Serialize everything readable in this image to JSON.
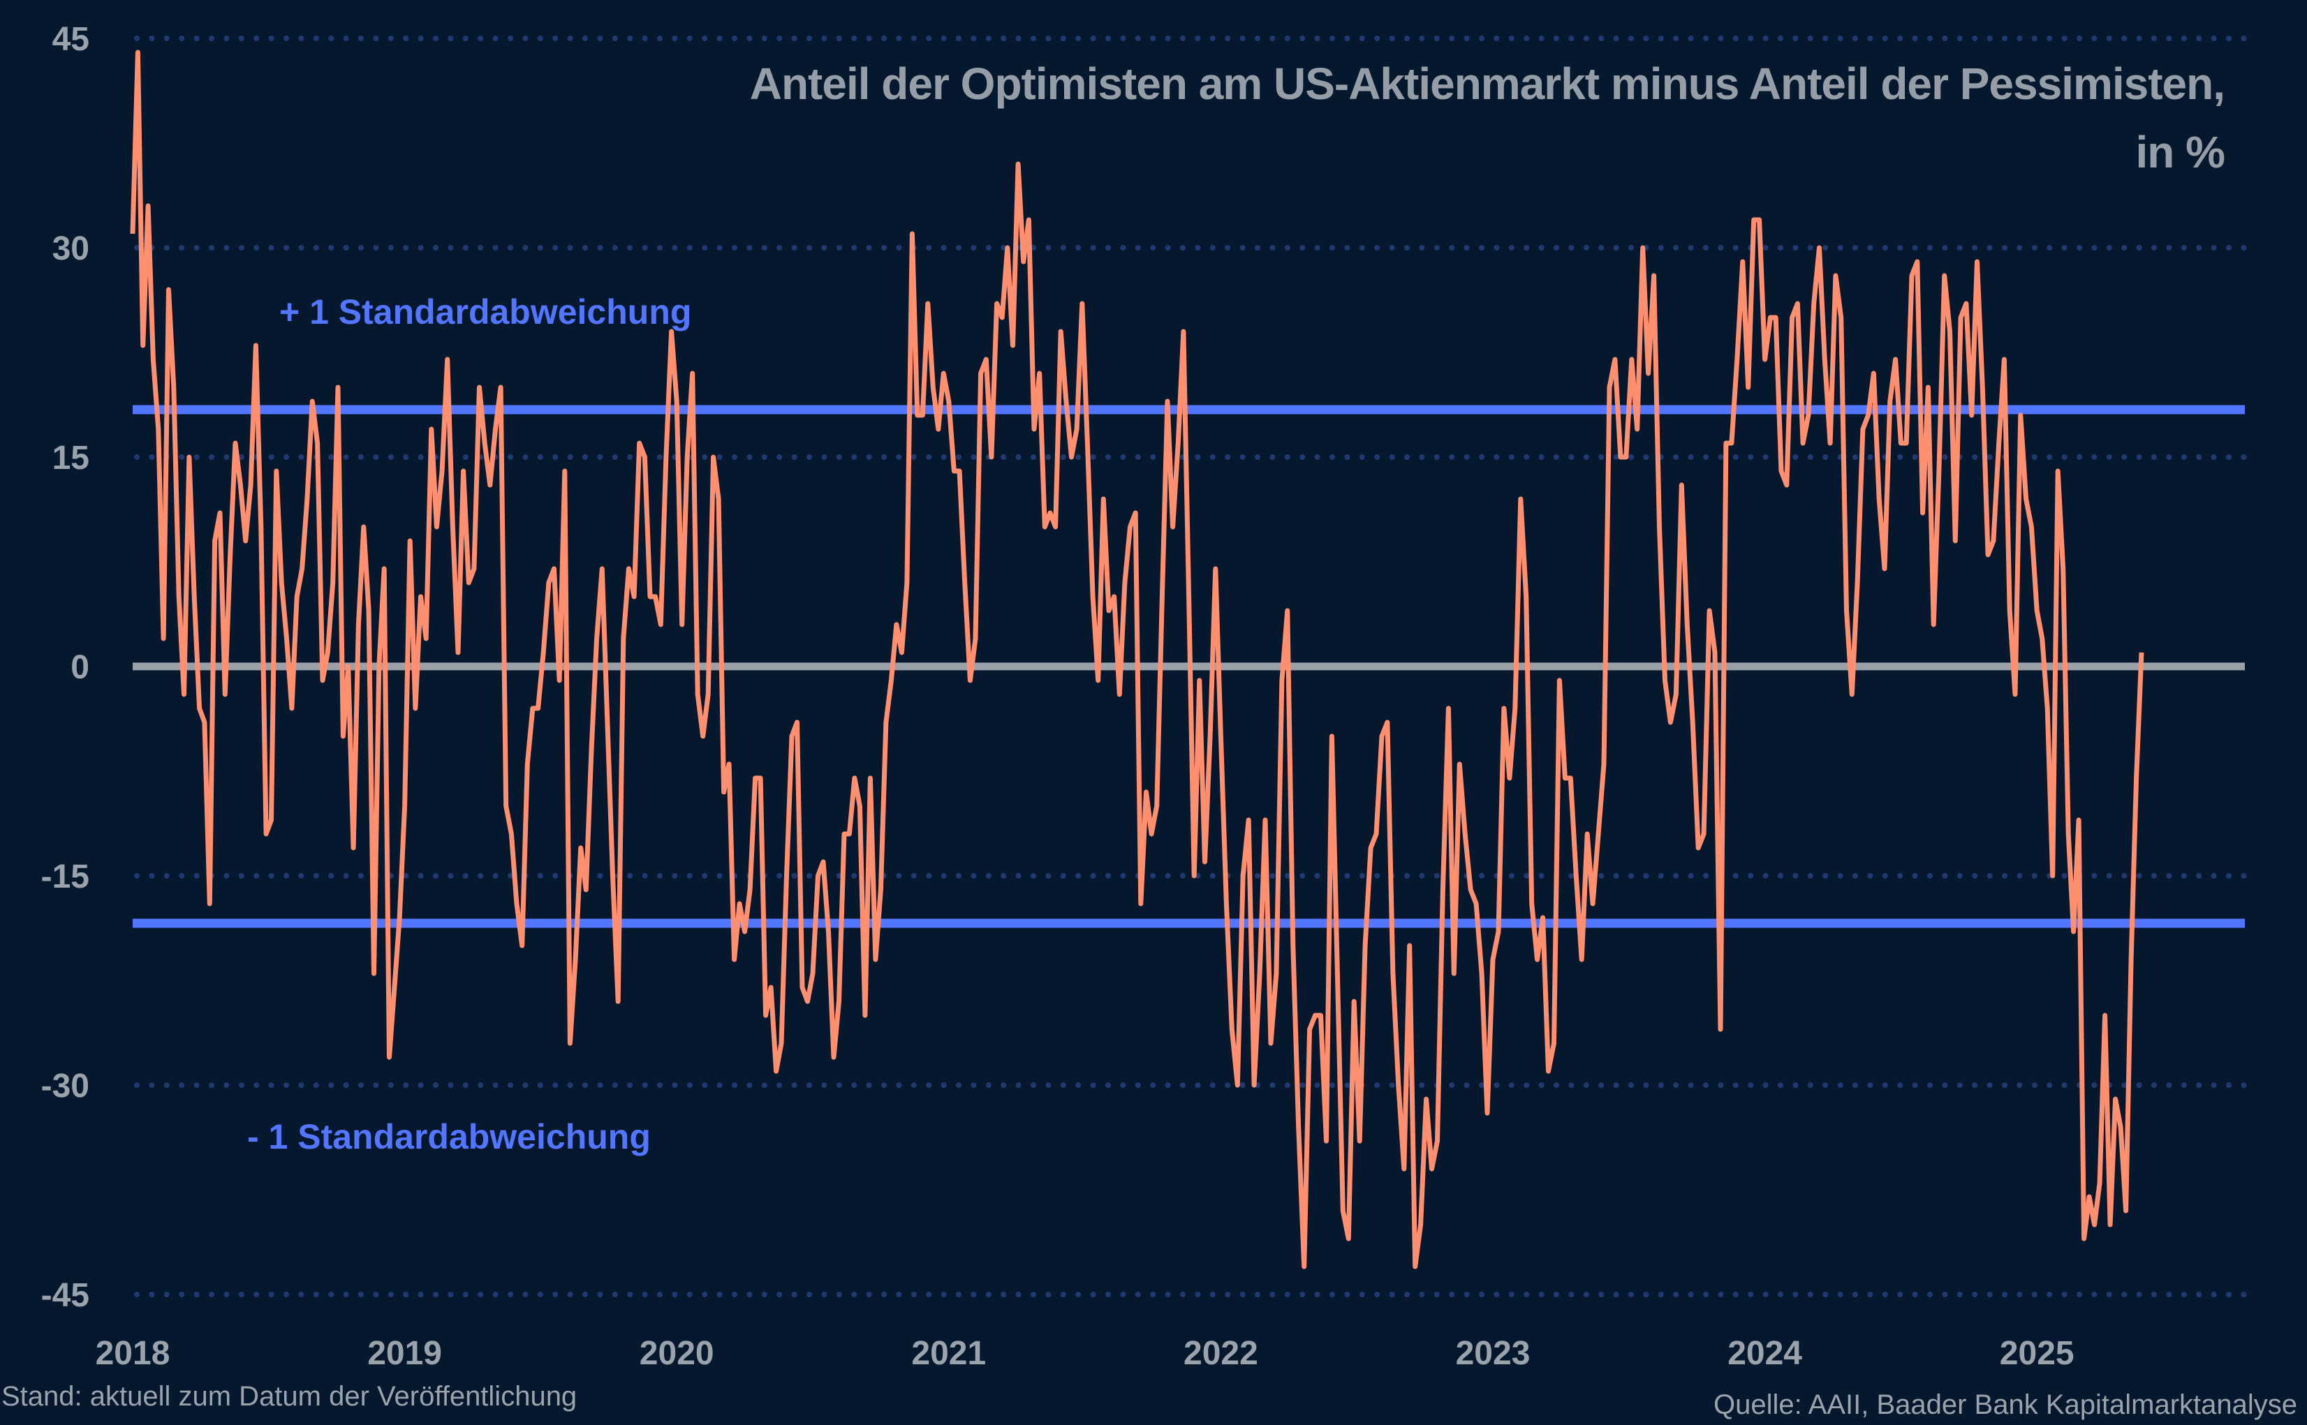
{
  "chart_data": {
    "type": "line",
    "title": "Anteil der Optimisten am US-Aktienmarkt minus Anteil der Pessimisten,",
    "title_line2": "in %",
    "frequency": "weekly",
    "ylim": [
      -45,
      45
    ],
    "yticks": [
      "45",
      "30",
      "15",
      "0",
      "-15",
      "-30",
      "-45"
    ],
    "ytick_values": [
      45,
      30,
      15,
      0,
      -15,
      -30,
      -45
    ],
    "xticks": [
      "2018",
      "2019",
      "2020",
      "2021",
      "2022",
      "2023",
      "2024",
      "2025"
    ],
    "grid": "horizontal dotted",
    "series_color": "#ff8f6e",
    "values_by_year": {
      "2018": [
        31,
        44,
        23,
        33,
        22,
        17,
        2,
        27,
        20,
        5,
        -2,
        15,
        5,
        -3,
        -4,
        -17,
        9,
        11,
        -2,
        8,
        16,
        13,
        9,
        13,
        23,
        10,
        -12,
        -11,
        14,
        6,
        2,
        -3,
        5,
        7,
        12,
        19,
        16,
        -1,
        1,
        6,
        20,
        -5,
        0,
        -13,
        3,
        10,
        4,
        -22,
        0,
        7,
        -28,
        -23,
        -18
      ],
      "2019": [
        -10,
        9,
        -3,
        5,
        2,
        17,
        10,
        14,
        22,
        10,
        1,
        14,
        6,
        7,
        20,
        16,
        13,
        17,
        20,
        -10,
        -12,
        -17,
        -20,
        -7,
        -3,
        -3,
        1,
        6,
        7,
        -1,
        14,
        -27,
        -21,
        -13,
        -16,
        -6,
        2,
        7,
        -4,
        -15,
        -24,
        2,
        7,
        5,
        16,
        15,
        5,
        5,
        3,
        15,
        24
      ],
      "2020": [
        19,
        3,
        15,
        21,
        -2,
        -5,
        -2,
        15,
        12,
        -9,
        -7,
        -21,
        -17,
        -19,
        -16,
        -8,
        -8,
        -25,
        -23,
        -29,
        -27,
        -15,
        -5,
        -4,
        -23,
        -24,
        -22,
        -15,
        -14,
        -19,
        -28,
        -24,
        -12,
        -12,
        -8,
        -10,
        -25,
        -8,
        -21,
        -16,
        -4,
        -1,
        3,
        1,
        6,
        31,
        18,
        18,
        26,
        20,
        17,
        21
      ],
      "2021": [
        19,
        14,
        14,
        6,
        -1,
        2,
        21,
        22,
        15,
        26,
        25,
        30,
        23,
        36,
        29,
        32,
        17,
        21,
        10,
        11,
        10,
        24,
        19,
        15,
        17,
        26,
        16,
        5,
        -1,
        12,
        4,
        5,
        -2,
        6,
        10,
        11,
        -17,
        -9,
        -12,
        -10,
        5,
        19,
        10,
        16,
        24,
        5,
        -15,
        -1,
        -14,
        -5,
        7
      ],
      "2022": [
        -5,
        -17,
        -26,
        -30,
        -15,
        -11,
        -30,
        -22,
        -11,
        -27,
        -22,
        -1,
        4,
        -20,
        -33,
        -43,
        -26,
        -25,
        -25,
        -34,
        -5,
        -22,
        -39,
        -41,
        -24,
        -34,
        -20,
        -13,
        -12,
        -5,
        -4,
        -22,
        -30,
        -36,
        -20,
        -43,
        -40,
        -31,
        -36,
        -34,
        -16,
        -3,
        -22,
        -7,
        -12,
        -16,
        -17,
        -22,
        -32
      ],
      "2023": [
        -21,
        -19,
        -3,
        -8,
        -3,
        12,
        5,
        -17,
        -21,
        -18,
        -29,
        -27,
        -1,
        -8,
        -8,
        -15,
        -21,
        -12,
        -17,
        -12,
        -7,
        20,
        22,
        15,
        15,
        22,
        17,
        30,
        21,
        28,
        10,
        -1,
        -4,
        -2,
        13,
        3,
        -4,
        -13,
        -12,
        4,
        1,
        -26,
        16,
        16,
        22,
        29,
        20,
        32,
        32
      ],
      "2024": [
        22,
        25,
        25,
        14,
        13,
        25,
        26,
        16,
        18,
        26,
        30,
        22,
        16,
        28,
        25,
        4,
        -2,
        6,
        17,
        18,
        21,
        12,
        7,
        19,
        22,
        16,
        16,
        28,
        29,
        11,
        20,
        3,
        14,
        28,
        24,
        9,
        25,
        26,
        18,
        29,
        20,
        8,
        9,
        16,
        22,
        4,
        -2,
        18,
        12,
        10
      ],
      "2025": [
        4,
        2,
        -3,
        -15,
        14,
        7,
        -12,
        -19,
        -11,
        -41,
        -38,
        -40,
        -37,
        -25,
        -40,
        -31,
        -33,
        -39,
        -21,
        -8,
        1
      ]
    },
    "reference_lines": [
      {
        "label": "+ 1 Standardabweichung",
        "value": 18.4,
        "color": "#5276ff"
      },
      {
        "label": "- 1 Standardabweichung",
        "value": -18.4,
        "color": "#5276ff"
      },
      {
        "label": "",
        "value": 0,
        "color": "#9aa1a8"
      }
    ]
  },
  "footer": {
    "left": "Stand: aktuell zum Datum der Veröffentlichung",
    "right": "Quelle: AAII, Baader Bank Kapitalmarktanalyse"
  }
}
